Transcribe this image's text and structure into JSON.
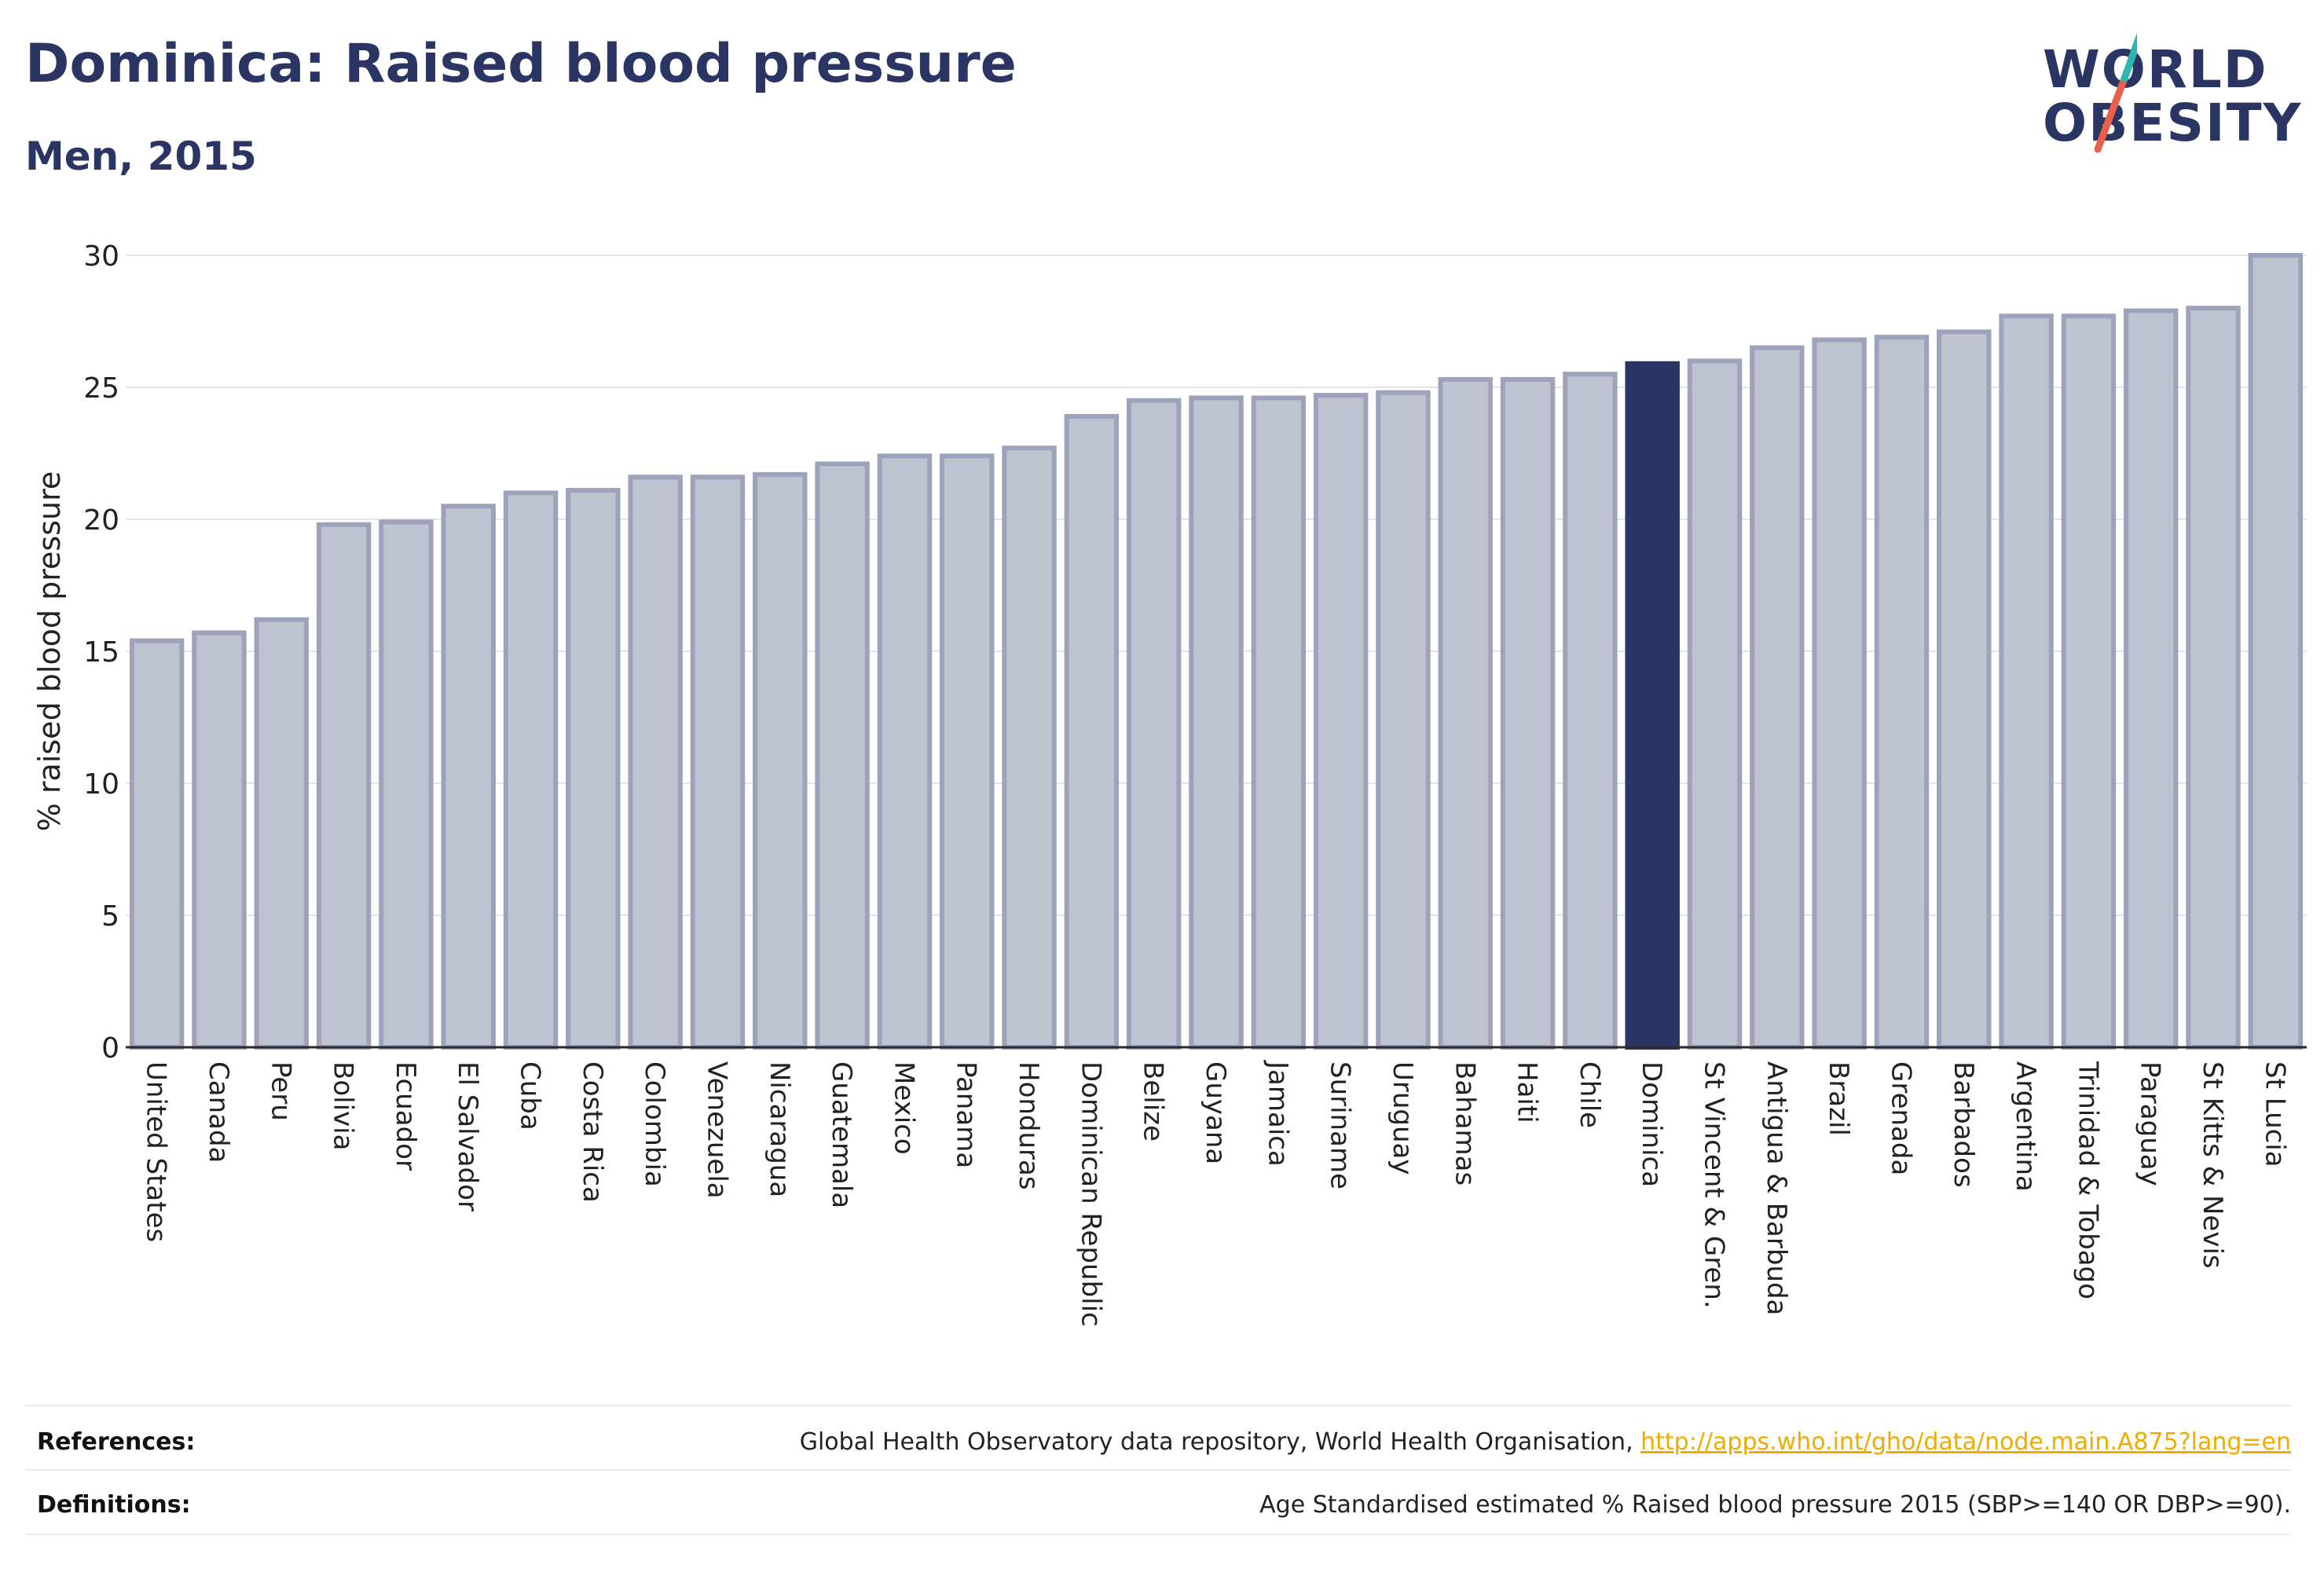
{
  "header": {
    "title": "Dominica: Raised blood pressure",
    "subtitle": "Men, 2015"
  },
  "logo": {
    "line1": "WORLD",
    "line2": "OBESITY",
    "accent_colors": [
      "#2bb6b0",
      "#e8604c"
    ]
  },
  "chart_data": {
    "type": "bar",
    "title": "Dominica: Raised blood pressure",
    "subtitle": "Men, 2015",
    "ylabel": "% raised blood pressure",
    "xlabel": "",
    "ylim": [
      0,
      30
    ],
    "yticks": [
      0,
      5,
      10,
      15,
      20,
      25,
      30
    ],
    "grid": true,
    "highlight": "Dominica",
    "colors": {
      "bar": "#bfc2cf",
      "bar_border": "#9ea3bb",
      "highlight": "#2a3563",
      "grid": "#e3e5ec"
    },
    "categories": [
      "United States",
      "Canada",
      "Peru",
      "Bolivia",
      "Ecuador",
      "El Salvador",
      "Cuba",
      "Costa Rica",
      "Colombia",
      "Venezuela",
      "Nicaragua",
      "Guatemala",
      "Mexico",
      "Panama",
      "Honduras",
      "Dominican Republic",
      "Belize",
      "Guyana",
      "Jamaica",
      "Suriname",
      "Uruguay",
      "Bahamas",
      "Haiti",
      "Chile",
      "Dominica",
      "St Vincent & Gren.",
      "Antigua & Barbuda",
      "Brazil",
      "Grenada",
      "Barbados",
      "Argentina",
      "Trinidad & Tobago",
      "Paraguay",
      "St Kitts & Nevis",
      "St Lucia"
    ],
    "values": [
      15.4,
      15.7,
      16.2,
      19.8,
      19.9,
      20.5,
      21.0,
      21.1,
      21.6,
      21.6,
      21.7,
      22.1,
      22.4,
      22.4,
      22.7,
      23.9,
      24.5,
      24.6,
      24.6,
      24.7,
      24.8,
      25.3,
      25.3,
      25.5,
      25.9,
      26.0,
      26.5,
      26.8,
      26.9,
      27.1,
      27.7,
      27.7,
      27.9,
      28.0,
      30.0
    ]
  },
  "footer": {
    "references_label": "References:",
    "references_text": "Global Health Observatory data repository, World Health Organisation, ",
    "references_link": "http://apps.who.int/gho/data/node.main.A875?lang=en",
    "definitions_label": "Definitions:",
    "definitions_text": "Age Standardised estimated % Raised blood pressure 2015 (SBP>=140 OR DBP>=90)."
  }
}
